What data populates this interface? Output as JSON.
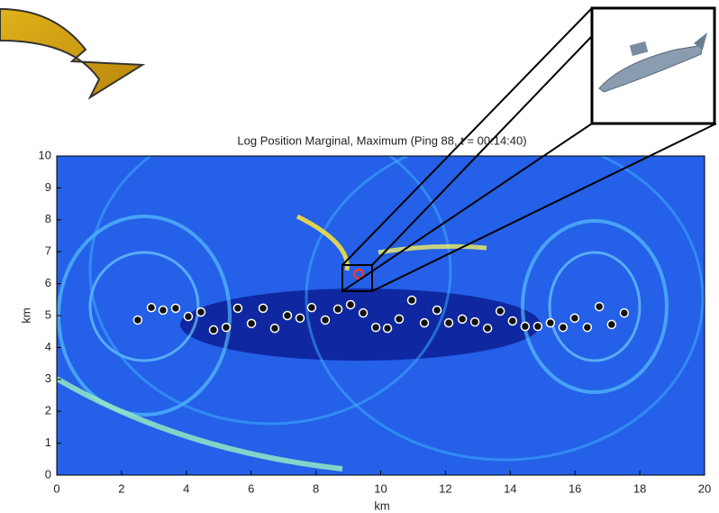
{
  "chart_data": {
    "type": "scatter",
    "title": "Log Position Marginal, Maximum (Ping 88, t = 00:14:40)",
    "x_label": "km",
    "y_label": "km",
    "xlim": [
      0,
      20
    ],
    "ylim": [
      0,
      10
    ],
    "xticks": [
      0,
      2,
      4,
      6,
      8,
      10,
      12,
      14,
      16,
      18,
      20
    ],
    "yticks": [
      0,
      1,
      2,
      3,
      4,
      5,
      6,
      7,
      8,
      9,
      10
    ],
    "series": [
      {
        "color": "#111111",
        "x": [
          2.5,
          2.92,
          3.28,
          3.67,
          4.06,
          4.45,
          4.84,
          5.23,
          5.59,
          6.01,
          6.37,
          6.73,
          7.12,
          7.51,
          7.87,
          8.29,
          8.68,
          9.07,
          9.46,
          9.85,
          10.21,
          10.57,
          10.96,
          11.35,
          11.74,
          12.1,
          12.52,
          12.91,
          13.3,
          13.69,
          14.07,
          14.46,
          14.85,
          15.24,
          15.63,
          15.99,
          16.38,
          16.75,
          17.13,
          17.52
        ],
        "values": [
          4.86,
          5.25,
          5.17,
          5.23,
          4.97,
          5.11,
          4.55,
          4.63,
          5.23,
          4.75,
          5.23,
          4.6,
          5.0,
          4.92,
          5.25,
          4.86,
          5.2,
          5.34,
          5.08,
          4.63,
          4.6,
          4.89,
          5.48,
          4.77,
          5.17,
          4.77,
          4.89,
          4.8,
          4.6,
          5.14,
          4.83,
          4.66,
          4.66,
          4.77,
          4.63,
          4.92,
          4.63,
          5.28,
          4.72,
          5.08
        ]
      },
      {
        "color": "#e8402a",
        "x": [
          9.32
        ],
        "values": [
          6.3
        ]
      }
    ]
  }
}
